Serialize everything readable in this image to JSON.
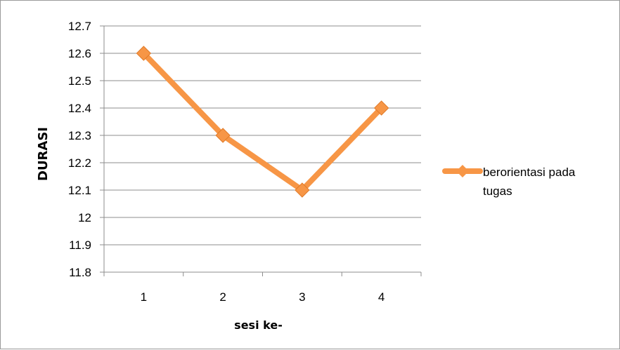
{
  "chart_data": {
    "type": "line",
    "categories": [
      "1",
      "2",
      "3",
      "4"
    ],
    "series": [
      {
        "name": "berorientasi pada tugas",
        "values": [
          12.6,
          12.3,
          12.1,
          12.4
        ],
        "color": "#f79646",
        "marker": "diamond"
      }
    ],
    "xlabel": "sesi ke-",
    "ylabel": "DURASI",
    "ylim": [
      11.8,
      12.7
    ],
    "yticks": [
      "12.7",
      "12.6",
      "12.5",
      "12.4",
      "12.3",
      "12.2",
      "12.1",
      "12",
      "11.9",
      "11.8"
    ],
    "grid": true,
    "legend_position": "right",
    "legend_lines": [
      "berorientasi pada",
      "tugas"
    ]
  }
}
